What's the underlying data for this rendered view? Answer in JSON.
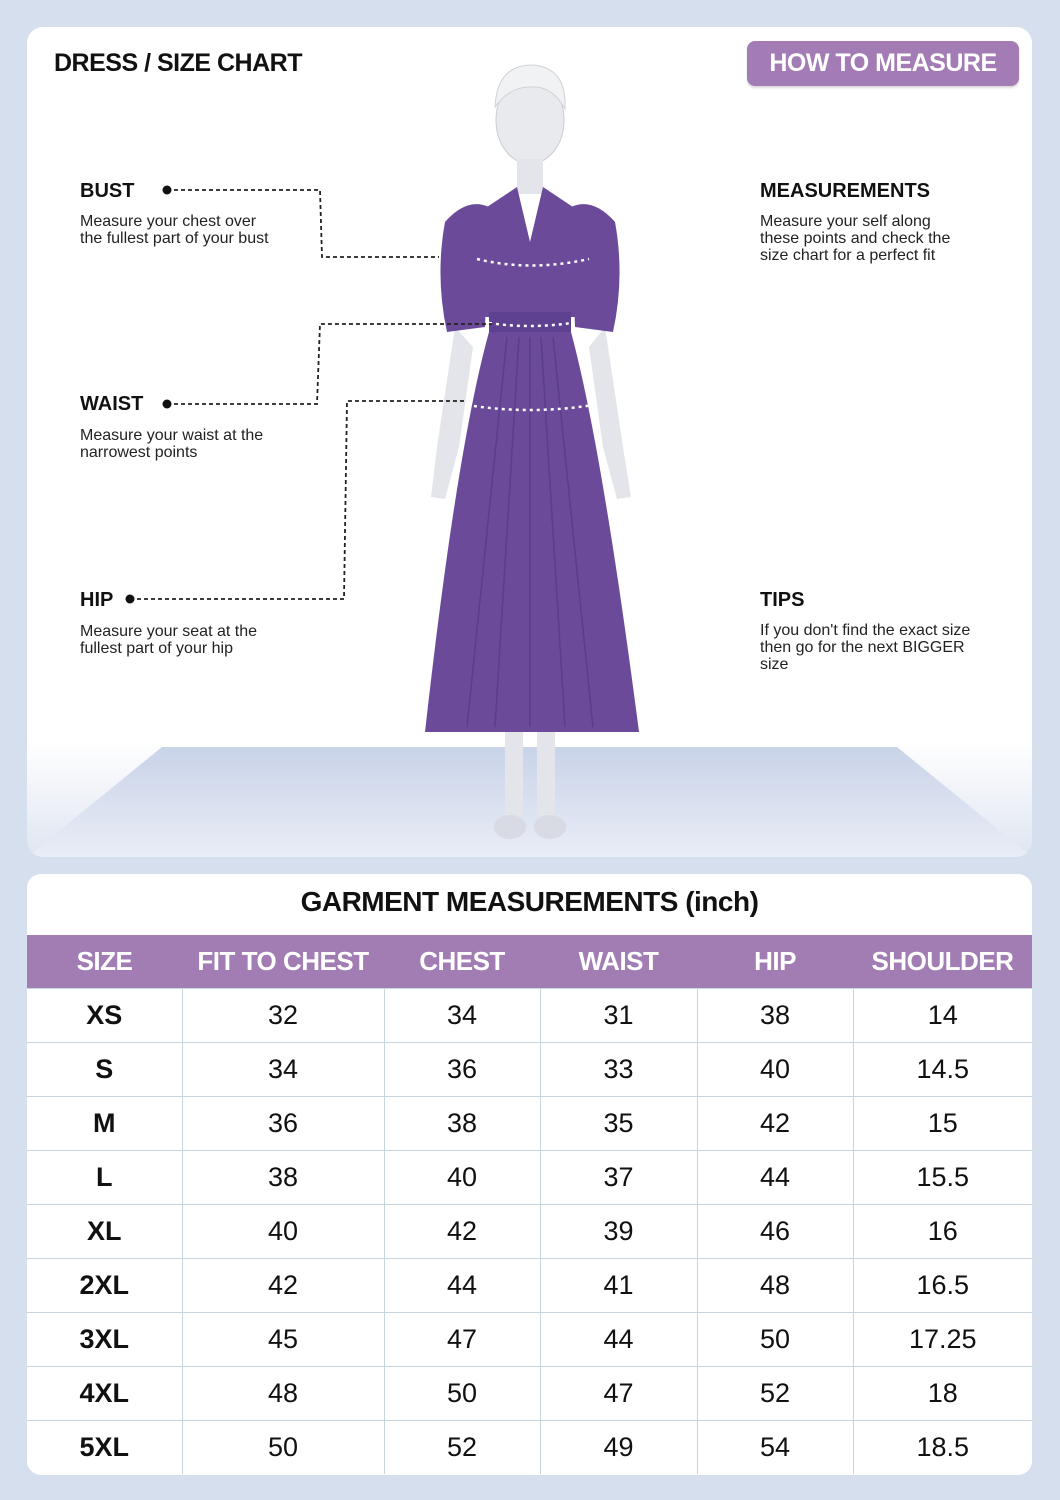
{
  "header": {
    "title": "DRESS / SIZE CHART",
    "how_to_measure": "HOW TO MEASURE"
  },
  "guides": {
    "bust": {
      "label": "BUST",
      "text": "Measure your chest over the fullest part of your bust"
    },
    "waist": {
      "label": "WAIST",
      "text": "Measure your waist at the narrowest points"
    },
    "hip": {
      "label": "HIP",
      "text": "Measure your seat at the fullest part of your hip"
    },
    "measurements": {
      "label": "MEASUREMENTS",
      "text": "Measure your self along these points and check the size chart for a perfect fit"
    },
    "tips": {
      "label": "TIPS",
      "text": "If you don't find the exact size then go for the next BIGGER size"
    }
  },
  "colors": {
    "accent": "#a27db3",
    "dress": "#6b4a9a",
    "background": "#d5dfee"
  },
  "table": {
    "title": "GARMENT MEASUREMENTS (inch)",
    "columns": [
      "SIZE",
      "FIT TO CHEST",
      "CHEST",
      "WAIST",
      "HIP",
      "SHOULDER"
    ],
    "rows": [
      [
        "XS",
        "32",
        "34",
        "31",
        "38",
        "14"
      ],
      [
        "S",
        "34",
        "36",
        "33",
        "40",
        "14.5"
      ],
      [
        "M",
        "36",
        "38",
        "35",
        "42",
        "15"
      ],
      [
        "L",
        "38",
        "40",
        "37",
        "44",
        "15.5"
      ],
      [
        "XL",
        "40",
        "42",
        "39",
        "46",
        "16"
      ],
      [
        "2XL",
        "42",
        "44",
        "41",
        "48",
        "16.5"
      ],
      [
        "3XL",
        "45",
        "47",
        "44",
        "50",
        "17.25"
      ],
      [
        "4XL",
        "48",
        "50",
        "47",
        "52",
        "18"
      ],
      [
        "5XL",
        "50",
        "52",
        "49",
        "54",
        "18.5"
      ]
    ]
  }
}
